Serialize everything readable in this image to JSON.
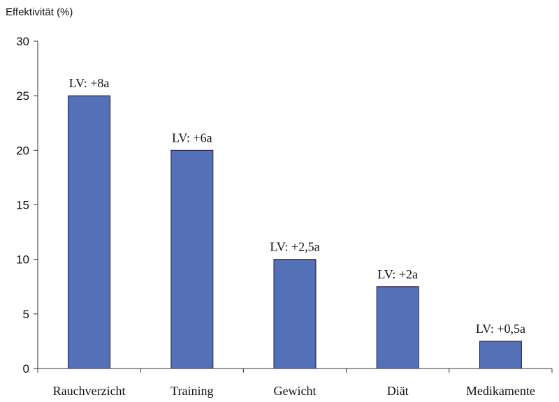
{
  "chart_data": {
    "type": "bar",
    "title": "",
    "xlabel": "",
    "ylabel": "Effektivität (%)",
    "categories": [
      "Rauchverzicht",
      "Training",
      "Gewicht",
      "Diät",
      "Medikamente"
    ],
    "values": [
      25,
      20,
      10,
      7.5,
      2.5
    ],
    "data_labels": [
      "LV: +8a",
      "LV: +6a",
      "LV: +2,5a",
      "LV: +2a",
      "LV: +0,5a"
    ],
    "ylim": [
      0,
      30
    ],
    "yticks": [
      "0",
      "5",
      "10",
      "15",
      "20",
      "25",
      "30"
    ],
    "grid": false,
    "legend": "none",
    "colors": {
      "bar_fill": "#5470b7",
      "bar_stroke": "#1a1a4a",
      "axis": "#333333"
    }
  }
}
